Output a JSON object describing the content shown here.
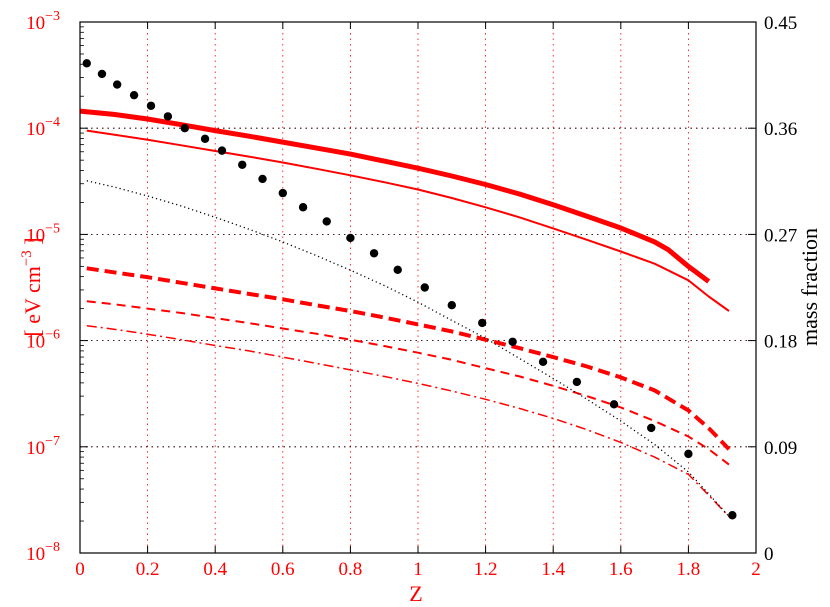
{
  "chart_data": {
    "type": "line",
    "xlabel": "Z",
    "ylabel_left_parts": [
      "[ eV cm",
      "−3",
      " ]"
    ],
    "ylabel_right": "mass fraction",
    "xlim": [
      0,
      2
    ],
    "ylim_left": [
      1e-08,
      0.001
    ],
    "ylim_right": [
      0,
      0.45
    ],
    "yscale_left": "log",
    "yscale_right": "linear",
    "grid": true,
    "colors": {
      "left_axis": "#ff0000",
      "right_axis": "#000000",
      "grid_left": "#ff0000",
      "grid_x": "#ff0000",
      "grid_right": "#000000"
    },
    "x_ticks": [
      "0",
      "0.2",
      "0.4",
      "0.6",
      "0.8",
      "1",
      "1.2",
      "1.4",
      "1.6",
      "1.8",
      "2"
    ],
    "y_left_ticks": [
      {
        "base": "10",
        "exp": "−3",
        "value": 0.001
      },
      {
        "base": "10",
        "exp": "−4",
        "value": 0.0001
      },
      {
        "base": "10",
        "exp": "−5",
        "value": 1e-05
      },
      {
        "base": "10",
        "exp": "−6",
        "value": 1e-06
      },
      {
        "base": "10",
        "exp": "−7",
        "value": 1e-07
      },
      {
        "base": "10",
        "exp": "−8",
        "value": 1e-08
      }
    ],
    "y_right_ticks": [
      "0",
      "0.09",
      "0.18",
      "0.27",
      "0.36",
      "0.45"
    ],
    "series": [
      {
        "axis": "left",
        "color": "#ff0000",
        "style": "solid",
        "width": 5,
        "x": [
          0,
          0.1,
          0.2,
          0.3,
          0.4,
          0.5,
          0.6,
          0.7,
          0.8,
          0.9,
          1.0,
          1.1,
          1.2,
          1.3,
          1.4,
          1.5,
          1.6,
          1.7,
          1.74,
          1.8,
          1.86
        ],
        "y": [
          0.000145,
          0.000135,
          0.000122,
          0.000108,
          9.5e-05,
          8.4e-05,
          7.4e-05,
          6.5e-05,
          5.7e-05,
          4.9e-05,
          4.2e-05,
          3.55e-05,
          2.95e-05,
          2.4e-05,
          1.9e-05,
          1.48e-05,
          1.15e-05,
          8.5e-06,
          7.2e-06,
          5e-06,
          3.6e-06
        ]
      },
      {
        "axis": "left",
        "color": "#ff0000",
        "style": "solid",
        "width": 2,
        "x": [
          0.02,
          0.1,
          0.2,
          0.3,
          0.4,
          0.5,
          0.6,
          0.7,
          0.8,
          0.9,
          1.0,
          1.1,
          1.2,
          1.3,
          1.4,
          1.5,
          1.6,
          1.7,
          1.8,
          1.86,
          1.92
        ],
        "y": [
          9.5e-05,
          8.7e-05,
          7.8e-05,
          6.9e-05,
          6.1e-05,
          5.4e-05,
          4.75e-05,
          4.15e-05,
          3.6e-05,
          3.1e-05,
          2.65e-05,
          2.2e-05,
          1.8e-05,
          1.45e-05,
          1.14e-05,
          8.9e-06,
          6.9e-06,
          5.3e-06,
          3.7e-06,
          2.6e-06,
          1.9e-06
        ]
      },
      {
        "axis": "left",
        "color": "#ff0000",
        "style": "dashed-thick",
        "width": 4,
        "x": [
          0.02,
          0.1,
          0.2,
          0.3,
          0.4,
          0.5,
          0.6,
          0.7,
          0.8,
          0.9,
          1.0,
          1.1,
          1.2,
          1.3,
          1.4,
          1.5,
          1.6,
          1.7,
          1.8,
          1.86,
          1.92
        ],
        "y": [
          4.8e-06,
          4.4e-06,
          3.95e-06,
          3.5e-06,
          3.1e-06,
          2.75e-06,
          2.45e-06,
          2.15e-06,
          1.9e-06,
          1.65e-06,
          1.42e-06,
          1.22e-06,
          1.02e-06,
          8.5e-07,
          7e-07,
          5.7e-07,
          4.5e-07,
          3.4e-07,
          2.2e-07,
          1.5e-07,
          9.5e-08
        ]
      },
      {
        "axis": "left",
        "color": "#ff0000",
        "style": "dashed",
        "width": 2,
        "x": [
          0.02,
          0.1,
          0.2,
          0.3,
          0.4,
          0.5,
          0.6,
          0.7,
          0.8,
          0.9,
          1.0,
          1.1,
          1.2,
          1.3,
          1.4,
          1.5,
          1.6,
          1.7,
          1.8,
          1.86,
          1.92
        ],
        "y": [
          2.35e-06,
          2.2e-06,
          2e-06,
          1.82e-06,
          1.63e-06,
          1.46e-06,
          1.3e-06,
          1.16e-06,
          1.02e-06,
          8.9e-07,
          7.7e-07,
          6.6e-07,
          5.5e-07,
          4.6e-07,
          3.75e-07,
          3e-07,
          2.35e-07,
          1.75e-07,
          1.25e-07,
          9.5e-08,
          6.8e-08
        ]
      },
      {
        "axis": "left",
        "color": "#ff0000",
        "style": "dashdot",
        "width": 1.5,
        "x": [
          0.02,
          0.1,
          0.2,
          0.3,
          0.4,
          0.5,
          0.6,
          0.7,
          0.8,
          0.9,
          1.0,
          1.1,
          1.2,
          1.3,
          1.4,
          1.5,
          1.6,
          1.7,
          1.8,
          1.86,
          1.92
        ],
        "y": [
          1.38e-06,
          1.28e-06,
          1.15e-06,
          1.02e-06,
          9e-07,
          8e-07,
          7e-07,
          6.1e-07,
          5.3e-07,
          4.6e-07,
          3.95e-07,
          3.35e-07,
          2.8e-07,
          2.3e-07,
          1.85e-07,
          1.45e-07,
          1.1e-07,
          8e-08,
          5.5e-08,
          3.5e-08,
          2.2e-08
        ]
      },
      {
        "axis": "left",
        "color": "#000000",
        "style": "dotted",
        "width": 1.3,
        "x": [
          0.02,
          0.1,
          0.2,
          0.3,
          0.4,
          0.5,
          0.6,
          0.7,
          0.8,
          0.9,
          1.0,
          1.1,
          1.2,
          1.3,
          1.4,
          1.5,
          1.6,
          1.7,
          1.8,
          1.86,
          1.92
        ],
        "y": [
          3.2e-05,
          2.8e-05,
          2.3e-05,
          1.85e-05,
          1.45e-05,
          1.12e-05,
          8.5e-06,
          6.3e-06,
          4.6e-06,
          3.3e-06,
          2.3e-06,
          1.55e-06,
          1.05e-06,
          6.8e-07,
          4.4e-07,
          2.8e-07,
          1.75e-07,
          1.05e-07,
          5.8e-08,
          3.6e-08,
          2.2e-08
        ]
      },
      {
        "axis": "right",
        "color": "#000000",
        "style": "markers",
        "width": 0,
        "x": [
          0.02,
          0.065,
          0.11,
          0.16,
          0.21,
          0.26,
          0.31,
          0.37,
          0.42,
          0.48,
          0.54,
          0.6,
          0.66,
          0.73,
          0.8,
          0.87,
          0.94,
          1.02,
          1.1,
          1.19,
          1.28,
          1.37,
          1.47,
          1.58,
          1.69,
          1.8,
          1.93
        ],
        "y": [
          0.415,
          0.406,
          0.397,
          0.388,
          0.379,
          0.37,
          0.36,
          0.351,
          0.341,
          0.329,
          0.317,
          0.305,
          0.293,
          0.281,
          0.267,
          0.254,
          0.24,
          0.225,
          0.21,
          0.195,
          0.179,
          0.162,
          0.145,
          0.126,
          0.106,
          0.084,
          0.032
        ]
      }
    ]
  }
}
